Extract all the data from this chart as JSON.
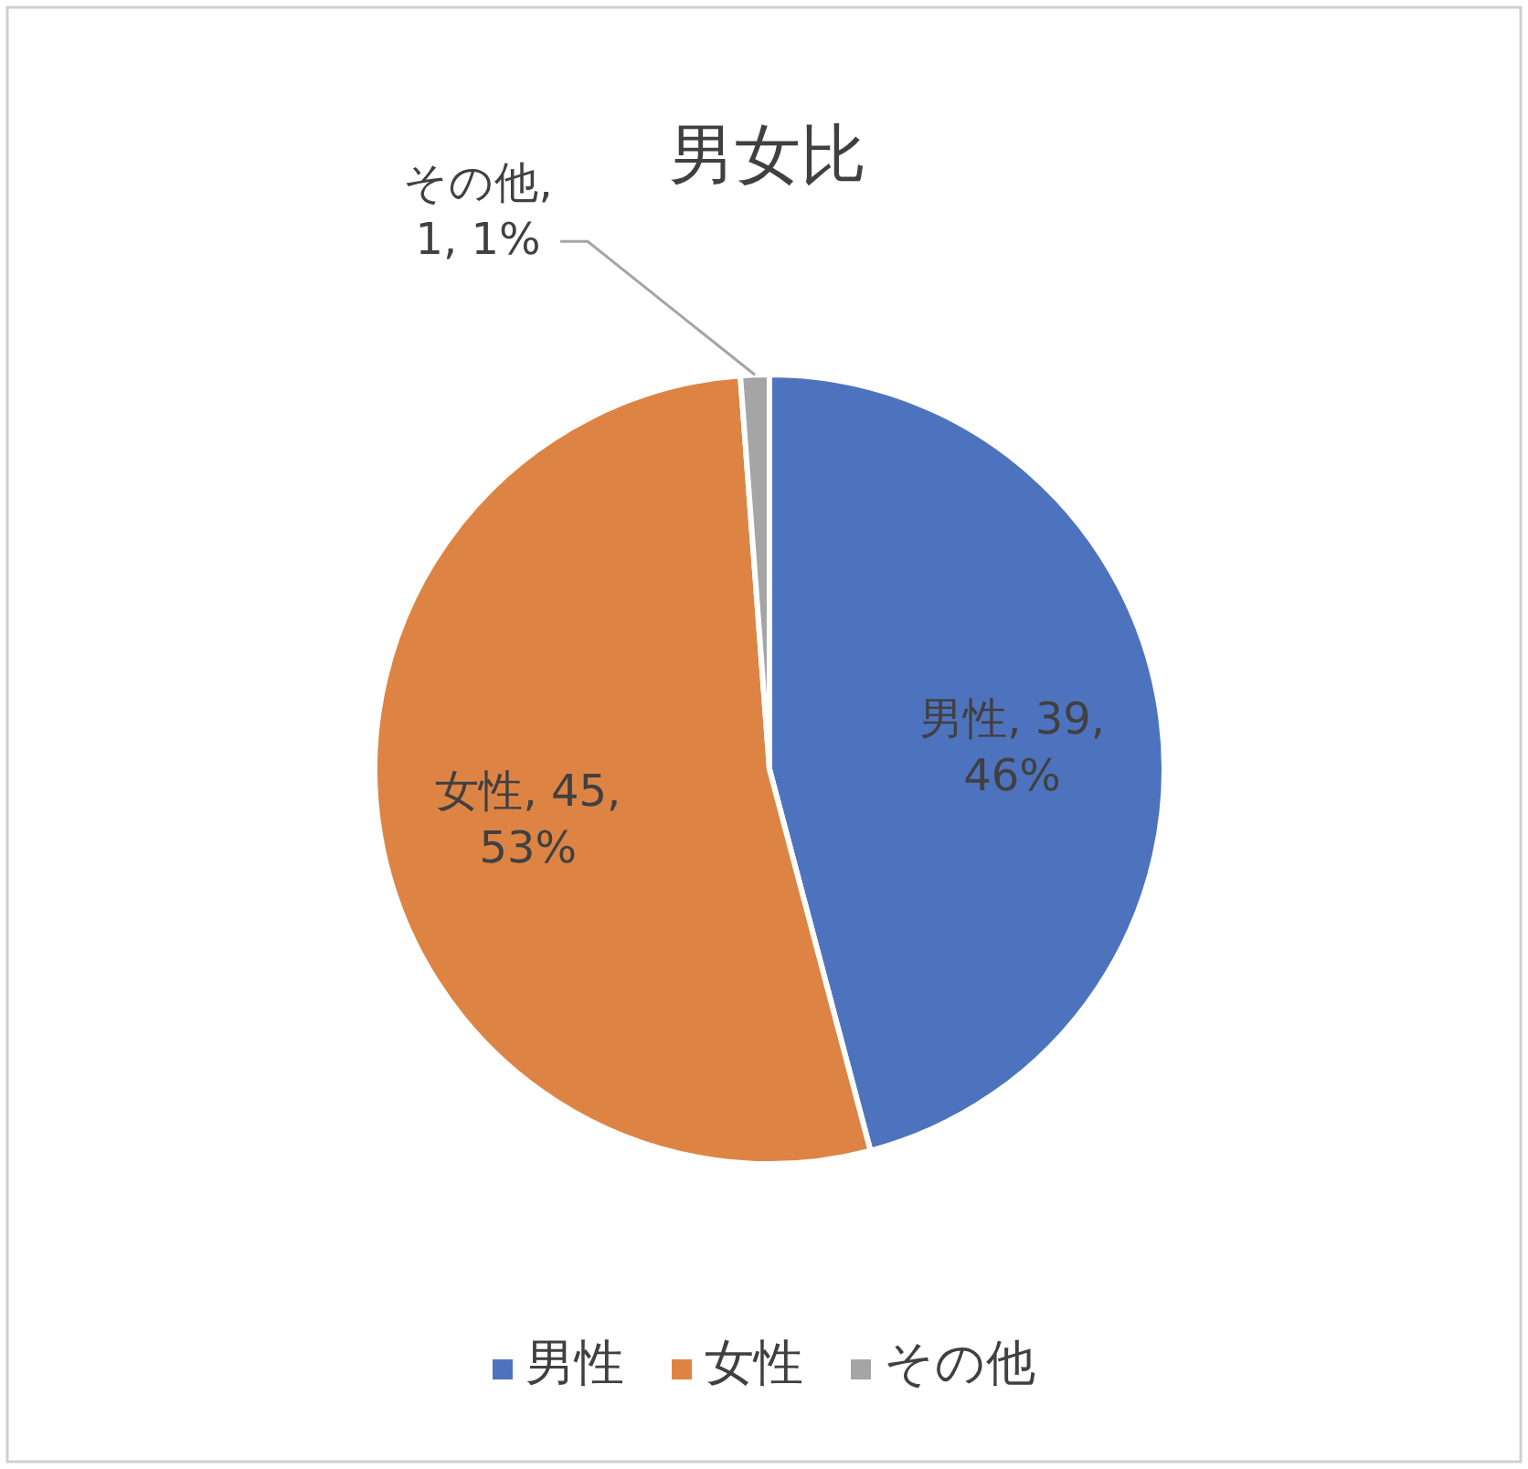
{
  "chart_data": {
    "type": "pie",
    "title": "男女比",
    "categories": [
      "男性",
      "女性",
      "その他"
    ],
    "values": [
      39,
      45,
      1
    ],
    "value_labels": [
      "男性, 39, 46%",
      "女性, 45, 53%",
      "その他, 1, 1%"
    ],
    "colors": [
      "#4e73be",
      "#dd8445",
      "#a5a5a5"
    ],
    "legend": "bottom"
  }
}
